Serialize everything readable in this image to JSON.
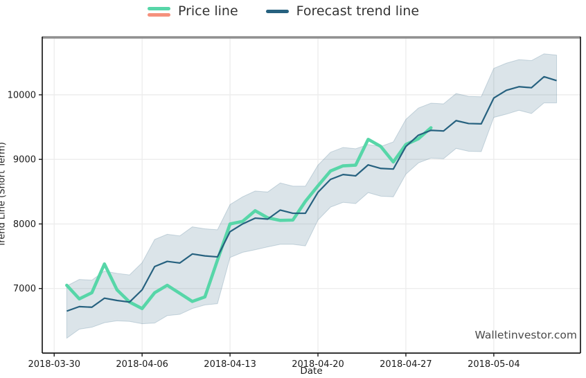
{
  "legend": {
    "position": "top-center",
    "items": [
      {
        "label": "Price line",
        "swatch_colors": [
          "#57d6a8",
          "#f5917d"
        ]
      },
      {
        "label": "Forecast trend line",
        "swatch_colors": [
          "#26617f"
        ]
      }
    ]
  },
  "watermark": "Walletinvestor.com",
  "colors": {
    "price_line": "#57d6a8",
    "price_line_alt": "#f5917d",
    "forecast_line": "#26617f",
    "band_fill": "rgba(39,97,127,0.17)",
    "band_edge": "rgba(39,97,127,0.22)",
    "gridline": "#ececec",
    "spine": "#1a1a1a",
    "top_spine": "#8f8f8f",
    "tick_text": "#1a1a1a"
  },
  "chart_data": {
    "type": "line",
    "title": "",
    "xlabel": "Date",
    "ylabel": "Trend Line (Short Term)",
    "grid": true,
    "legend_position": "top-center",
    "x_origin": "2018-03-30",
    "xlim_days": [
      -0.95,
      41.9
    ],
    "ylim": [
      6000,
      10900
    ],
    "y_ticks": [
      7000,
      8000,
      9000,
      10000
    ],
    "x_ticks": [
      "2018-03-30",
      "2018-04-06",
      "2018-04-13",
      "2018-04-20",
      "2018-04-27",
      "2018-05-04"
    ],
    "dates": [
      "2018-03-31",
      "2018-04-01",
      "2018-04-02",
      "2018-04-03",
      "2018-04-04",
      "2018-04-05",
      "2018-04-06",
      "2018-04-07",
      "2018-04-08",
      "2018-04-09",
      "2018-04-10",
      "2018-04-11",
      "2018-04-12",
      "2018-04-13",
      "2018-04-14",
      "2018-04-15",
      "2018-04-16",
      "2018-04-17",
      "2018-04-18",
      "2018-04-19",
      "2018-04-20",
      "2018-04-21",
      "2018-04-22",
      "2018-04-23",
      "2018-04-24",
      "2018-04-25",
      "2018-04-26",
      "2018-04-27",
      "2018-04-28",
      "2018-04-29",
      "2018-04-30",
      "2018-05-01",
      "2018-05-02",
      "2018-05-03",
      "2018-05-04",
      "2018-05-05",
      "2018-05-06",
      "2018-05-07",
      "2018-05-08",
      "2018-05-09"
    ],
    "series": [
      {
        "name": "Price line",
        "color": "#57d6a8",
        "n_points": 30,
        "values": [
          7050,
          6840,
          6935,
          7380,
          6980,
          6790,
          6690,
          6935,
          7050,
          6925,
          6800,
          6870,
          7440,
          8000,
          8040,
          8205,
          8095,
          8055,
          8060,
          8350,
          8590,
          8820,
          8900,
          8910,
          9310,
          9200,
          8960,
          9230,
          9320,
          9490
        ]
      },
      {
        "name": "Forecast trend line",
        "color": "#26617f",
        "n_points": 40,
        "values": [
          6650,
          6720,
          6710,
          6850,
          6815,
          6790,
          6980,
          7340,
          7420,
          7395,
          7535,
          7505,
          7490,
          7880,
          8000,
          8090,
          8075,
          8215,
          8165,
          8165,
          8490,
          8690,
          8765,
          8745,
          8915,
          8860,
          8850,
          9200,
          9375,
          9450,
          9440,
          9600,
          9555,
          9550,
          9950,
          10070,
          10125,
          10110,
          10280,
          10220
        ],
        "band_upper": [
          7040,
          7140,
          7130,
          7270,
          7235,
          7210,
          7400,
          7760,
          7840,
          7815,
          7955,
          7925,
          7910,
          8300,
          8420,
          8510,
          8495,
          8635,
          8585,
          8585,
          8910,
          9110,
          9185,
          9165,
          9230,
          9200,
          9270,
          9620,
          9795,
          9870,
          9860,
          10020,
          9975,
          9970,
          10410,
          10490,
          10545,
          10530,
          10635,
          10615
        ],
        "band_lower": [
          6230,
          6370,
          6400,
          6470,
          6500,
          6490,
          6455,
          6465,
          6580,
          6600,
          6690,
          6745,
          6765,
          7480,
          7560,
          7600,
          7645,
          7685,
          7685,
          7660,
          8060,
          8260,
          8335,
          8315,
          8485,
          8430,
          8420,
          8770,
          8945,
          9020,
          9010,
          9170,
          9125,
          9120,
          9650,
          9700,
          9760,
          9710,
          9875,
          9875
        ]
      }
    ]
  }
}
